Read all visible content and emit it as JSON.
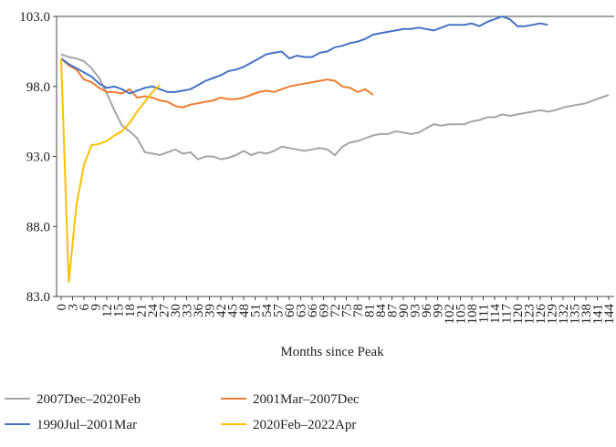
{
  "chart_data": {
    "type": "line",
    "x_label": "Months since Peak",
    "x": [
      0,
      2,
      4,
      6,
      8,
      10,
      12,
      14,
      16,
      18,
      20,
      22,
      24,
      26,
      28,
      30,
      32,
      34,
      36,
      38,
      40,
      42,
      44,
      46,
      48,
      50,
      52,
      54,
      56,
      58,
      60,
      62,
      64,
      66,
      68,
      70,
      72,
      74,
      76,
      78,
      80,
      82,
      84,
      86,
      88,
      90,
      92,
      94,
      96,
      98,
      100,
      102,
      104,
      106,
      108,
      110,
      112,
      114,
      116,
      118,
      120,
      122,
      124,
      126,
      128,
      130,
      132,
      134,
      136,
      138,
      140,
      142,
      144
    ],
    "xlim": [
      0,
      146
    ],
    "xticks": [
      0,
      3,
      6,
      9,
      12,
      15,
      18,
      21,
      24,
      27,
      30,
      33,
      36,
      39,
      42,
      45,
      48,
      51,
      54,
      57,
      60,
      63,
      66,
      69,
      72,
      75,
      78,
      81,
      84,
      87,
      90,
      93,
      96,
      99,
      102,
      105,
      108,
      111,
      114,
      117,
      120,
      123,
      126,
      129,
      132,
      135,
      138,
      141,
      144
    ],
    "ylim": [
      83,
      103
    ],
    "yticks": [
      {
        "value": 83,
        "label": "83.0"
      },
      {
        "value": 88,
        "label": "88.0"
      },
      {
        "value": 93,
        "label": "93.0"
      },
      {
        "value": 98,
        "label": "98.0"
      },
      {
        "value": 103,
        "label": "103.0"
      }
    ],
    "grid": false,
    "series": [
      {
        "name": "2007Dec–2020Feb",
        "color": "#a5a5a5",
        "values": [
          100.3,
          100.1,
          100,
          99.8,
          99.3,
          98.6,
          97.5,
          96.3,
          95.2,
          94.8,
          94.3,
          93.3,
          93.2,
          93.1,
          93.3,
          93.5,
          93.2,
          93.3,
          92.8,
          93,
          93,
          92.8,
          92.9,
          93.1,
          93.4,
          93.1,
          93.3,
          93.2,
          93.4,
          93.7,
          93.6,
          93.5,
          93.4,
          93.5,
          93.6,
          93.5,
          93.1,
          93.7,
          94,
          94.1,
          94.3,
          94.5,
          94.6,
          94.6,
          94.8,
          94.7,
          94.6,
          94.7,
          95,
          95.3,
          95.2,
          95.3,
          95.3,
          95.3,
          95.5,
          95.6,
          95.8,
          95.8,
          96,
          95.9,
          96,
          96.1,
          96.2,
          96.3,
          96.2,
          96.3,
          96.5,
          96.6,
          96.7,
          96.8,
          97,
          97.2,
          97.4
        ]
      },
      {
        "name": "2001Mar–2007Dec",
        "color": "#ed7d31",
        "values": [
          100,
          99.5,
          99.2,
          98.5,
          98.3,
          97.9,
          97.6,
          97.6,
          97.5,
          97.8,
          97.2,
          97.3,
          97.2,
          97,
          96.9,
          96.6,
          96.5,
          96.7,
          96.8,
          96.9,
          97,
          97.2,
          97.1,
          97.1,
          97.2,
          97.4,
          97.6,
          97.7,
          97.6,
          97.8,
          98,
          98.1,
          98.2,
          98.3,
          98.4,
          98.5,
          98.4,
          98,
          97.9,
          97.6,
          97.8,
          97.4,
          null,
          null,
          null,
          null,
          null,
          null,
          null,
          null,
          null,
          null,
          null,
          null,
          null,
          null,
          null,
          null,
          null,
          null,
          null,
          null,
          null,
          null,
          null,
          null,
          null,
          null,
          null,
          null,
          null,
          null,
          null
        ]
      },
      {
        "name": "1990Jul–2001Mar",
        "color": "#4472c4",
        "values": [
          100,
          99.6,
          99.3,
          99,
          98.7,
          98.2,
          97.9,
          98,
          97.8,
          97.5,
          97.7,
          97.9,
          98,
          97.8,
          97.6,
          97.6,
          97.7,
          97.8,
          98.1,
          98.4,
          98.6,
          98.8,
          99.1,
          99.2,
          99.4,
          99.7,
          100,
          100.3,
          100.4,
          100.5,
          100,
          100.2,
          100.1,
          100.1,
          100.4,
          100.5,
          100.8,
          100.9,
          101.1,
          101.2,
          101.4,
          101.7,
          101.8,
          101.9,
          102,
          102.1,
          102.1,
          102.2,
          102.1,
          102,
          102.2,
          102.4,
          102.4,
          102.4,
          102.5,
          102.3,
          102.6,
          102.8,
          103,
          102.8,
          102.3,
          102.3,
          102.4,
          102.5,
          102.4,
          null,
          null,
          null,
          null,
          null,
          null,
          null,
          null
        ]
      },
      {
        "name": "2020Feb–2022Apr",
        "color": "#ffc000",
        "values": [
          100,
          84,
          89.5,
          92.4,
          93.8,
          93.9,
          94.1,
          94.5,
          94.8,
          95.4,
          96.2,
          96.9,
          97.6,
          98.1,
          null,
          null,
          null,
          null,
          null,
          null,
          null,
          null,
          null,
          null,
          null,
          null,
          null,
          null,
          null,
          null,
          null,
          null,
          null,
          null,
          null,
          null,
          null,
          null,
          null,
          null,
          null,
          null,
          null,
          null,
          null,
          null,
          null,
          null,
          null,
          null,
          null,
          null,
          null,
          null,
          null,
          null,
          null,
          null,
          null,
          null,
          null,
          null,
          null,
          null,
          null,
          null,
          null,
          null,
          null,
          null,
          null,
          null,
          null
        ]
      }
    ]
  }
}
